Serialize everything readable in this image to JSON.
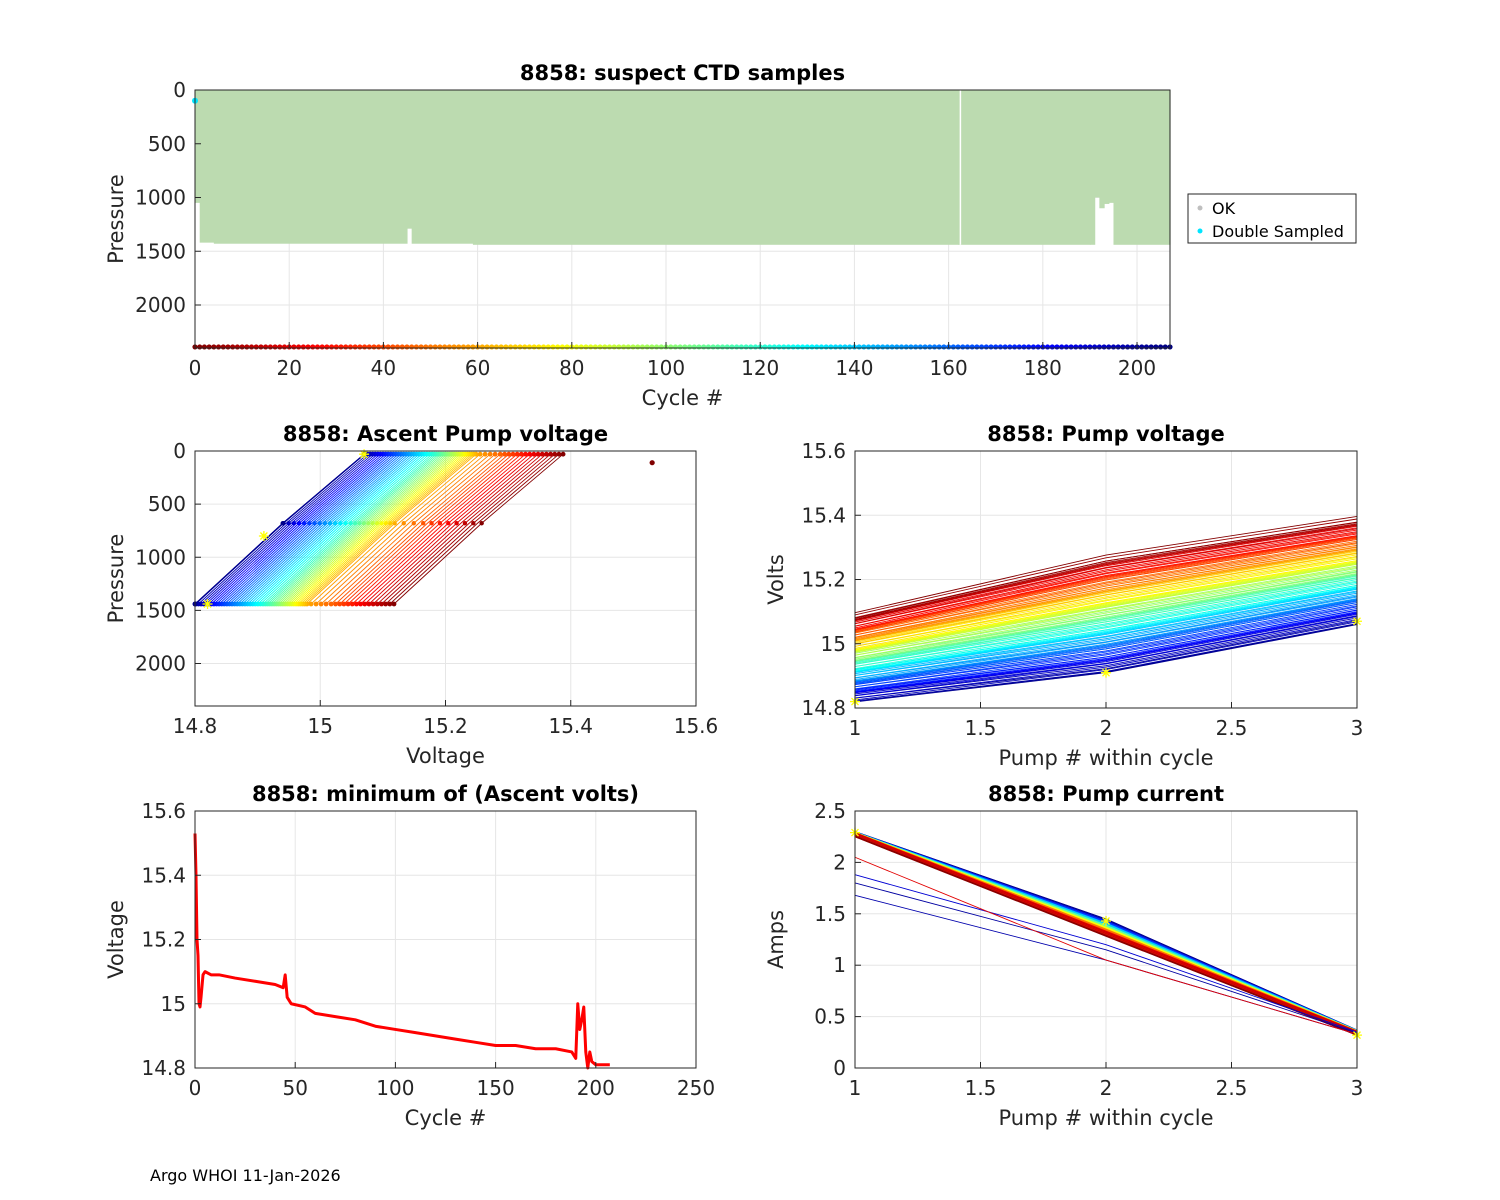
{
  "footer": "Argo WHOI 11-Jan-2026",
  "colors": {
    "ok": "#bcdbb0",
    "double": "#00e5ff",
    "trace": "#ff0000",
    "star": "#ffff00"
  },
  "chart_data": [
    {
      "id": "suspect",
      "type": "scatter",
      "title": "8858: suspect CTD samples",
      "xlabel": "Cycle #",
      "ylabel": "Pressure",
      "xlim": [
        0,
        207
      ],
      "ylim": [
        0,
        2400
      ],
      "y_reversed": true,
      "xticks": [
        0,
        20,
        40,
        60,
        80,
        100,
        120,
        140,
        160,
        180,
        200
      ],
      "yticks": [
        0,
        500,
        1000,
        1500,
        2000
      ],
      "legend": {
        "position": "right",
        "entries": [
          "OK",
          "Double Sampled"
        ]
      },
      "ok_profile_depth": [
        {
          "from": 0,
          "to": 1,
          "depth": 1050
        },
        {
          "from": 1,
          "to": 4,
          "depth": 1420
        },
        {
          "from": 4,
          "to": 45,
          "depth": 1430
        },
        {
          "from": 45,
          "to": 46,
          "depth": 1290
        },
        {
          "from": 46,
          "to": 59,
          "depth": 1430
        },
        {
          "from": 59,
          "to": 162,
          "depth": 1440
        },
        {
          "from": 162,
          "to": 190,
          "depth": 1440
        },
        {
          "from": 190,
          "to": 191,
          "depth": 1440
        },
        {
          "from": 191,
          "to": 192,
          "depth": 1000
        },
        {
          "from": 192,
          "to": 193,
          "depth": 1100
        },
        {
          "from": 193,
          "to": 194,
          "depth": 1060
        },
        {
          "from": 194,
          "to": 195,
          "depth": 1050
        },
        {
          "from": 195,
          "to": 207,
          "depth": 1440
        }
      ],
      "double_sampled": [
        {
          "cycle": 0,
          "pressure": 100
        }
      ],
      "cycle_band_pressure": 2390
    },
    {
      "id": "ascent",
      "type": "scatter",
      "title": "8858: Ascent Pump voltage",
      "xlabel": "Voltage",
      "ylabel": "Pressure",
      "xlim": [
        14.8,
        15.6
      ],
      "ylim": [
        0,
        2400
      ],
      "y_reversed": true,
      "xticks": [
        14.8,
        15,
        15.2,
        15.4,
        15.6
      ],
      "yticks": [
        0,
        500,
        1000,
        1500,
        2000
      ],
      "voltage_at_1440_dbar_by_cycle": {
        "cycles": [
          0,
          45,
          60,
          120,
          200,
          207
        ],
        "volts": [
          15.12,
          15.02,
          14.98,
          14.91,
          14.8,
          14.8
        ]
      },
      "outlier": {
        "voltage": 15.53,
        "pressure": 110
      }
    },
    {
      "id": "pumpv",
      "type": "line",
      "title": "8858: Pump voltage",
      "xlabel": "Pump # within cycle",
      "ylabel": "Volts",
      "xlim": [
        1,
        3
      ],
      "ylim": [
        14.8,
        15.6
      ],
      "xticks": [
        1,
        1.5,
        2,
        2.5,
        3
      ],
      "yticks": [
        14.8,
        15,
        15.2,
        15.4,
        15.6
      ],
      "first_cycle": {
        "pumps": [
          1,
          2,
          3
        ],
        "volts": [
          15.09,
          15.27,
          15.39
        ]
      },
      "last_cycle": {
        "pumps": [
          1,
          2,
          3
        ],
        "volts": [
          14.82,
          14.91,
          15.06
        ]
      }
    },
    {
      "id": "minv",
      "type": "line",
      "title": "8858: minimum of (Ascent volts)",
      "xlabel": "Cycle #",
      "ylabel": "Voltage",
      "xlim": [
        0,
        250
      ],
      "ylim": [
        14.8,
        15.6
      ],
      "xticks": [
        0,
        50,
        100,
        150,
        200,
        250
      ],
      "yticks": [
        14.8,
        15,
        15.2,
        15.4,
        15.6
      ],
      "x": [
        0,
        0.5,
        1,
        1.5,
        2,
        2.5,
        3,
        4,
        5,
        8,
        12,
        20,
        30,
        40,
        44,
        45,
        46,
        48,
        55,
        60,
        70,
        80,
        90,
        100,
        110,
        120,
        130,
        140,
        150,
        160,
        170,
        180,
        188,
        190,
        191,
        192,
        193,
        194,
        195,
        196,
        197,
        198,
        200,
        205,
        207
      ],
      "y": [
        15.53,
        15.4,
        15.2,
        15.15,
        15.0,
        14.99,
        15.02,
        15.09,
        15.1,
        15.09,
        15.09,
        15.08,
        15.07,
        15.06,
        15.05,
        15.09,
        15.02,
        15.0,
        14.99,
        14.97,
        14.96,
        14.95,
        14.93,
        14.92,
        14.91,
        14.9,
        14.89,
        14.88,
        14.87,
        14.87,
        14.86,
        14.86,
        14.85,
        14.83,
        15.0,
        14.92,
        14.95,
        14.99,
        14.85,
        14.8,
        14.85,
        14.82,
        14.81,
        14.81,
        14.81
      ]
    },
    {
      "id": "pumpc",
      "type": "line",
      "title": "8858: Pump current",
      "xlabel": "Pump # within cycle",
      "ylabel": "Amps",
      "xlim": [
        1,
        3
      ],
      "ylim": [
        0,
        2.5
      ],
      "xticks": [
        1,
        1.5,
        2,
        2.5,
        3
      ],
      "yticks": [
        0,
        0.5,
        1,
        1.5,
        2,
        2.5
      ],
      "typical_cycle": {
        "pumps": [
          1,
          2,
          3
        ],
        "amps": [
          2.28,
          1.43,
          0.35
        ]
      },
      "low_cycle": {
        "pumps": [
          1,
          2,
          3
        ],
        "amps": [
          2.25,
          1.1,
          0.32
        ]
      }
    }
  ]
}
